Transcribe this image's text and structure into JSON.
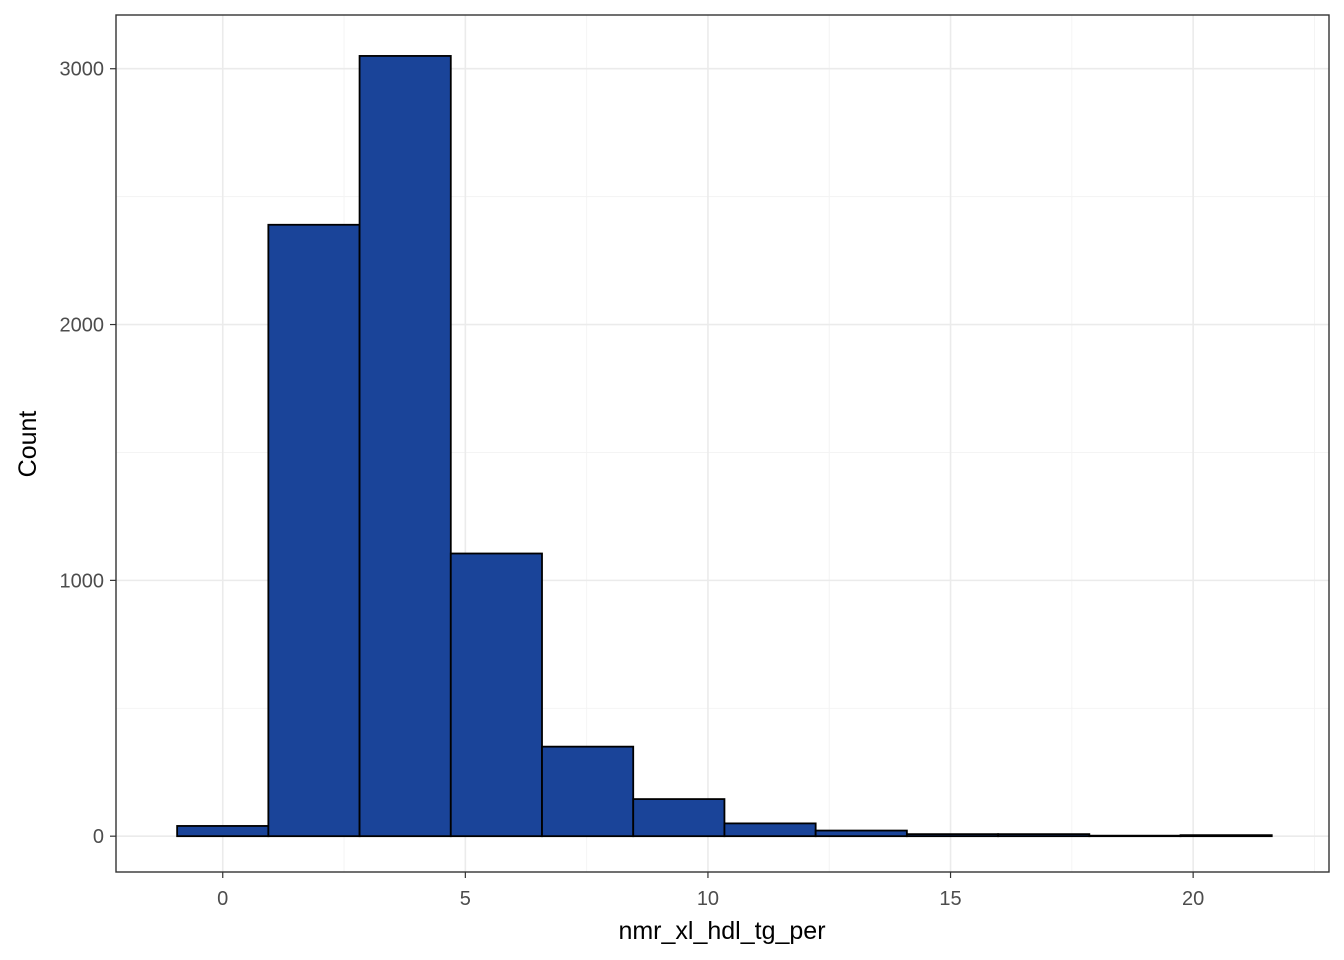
{
  "chart_data": {
    "type": "bar",
    "subtype": "histogram",
    "xlabel": "nmr_xl_hdl_tg_per",
    "ylabel": "Count",
    "xlim": [
      -2.2,
      22.8
    ],
    "ylim": [
      -140,
      3210
    ],
    "x_ticks": [
      0,
      5,
      10,
      15,
      20
    ],
    "x_tick_labels": [
      "0",
      "5",
      "10",
      "15",
      "20"
    ],
    "y_ticks": [
      0,
      1000,
      2000,
      3000
    ],
    "y_tick_labels": [
      "0",
      "1000",
      "2000",
      "3000"
    ],
    "grid": true,
    "bins": [
      {
        "x0": -0.94,
        "x1": 0.94,
        "count": 40
      },
      {
        "x0": 0.94,
        "x1": 2.82,
        "count": 2390
      },
      {
        "x0": 2.82,
        "x1": 4.7,
        "count": 3050
      },
      {
        "x0": 4.7,
        "x1": 6.58,
        "count": 1105
      },
      {
        "x0": 6.58,
        "x1": 8.46,
        "count": 350
      },
      {
        "x0": 8.46,
        "x1": 10.34,
        "count": 145
      },
      {
        "x0": 10.34,
        "x1": 12.22,
        "count": 50
      },
      {
        "x0": 12.22,
        "x1": 14.1,
        "count": 22
      },
      {
        "x0": 14.1,
        "x1": 15.98,
        "count": 8
      },
      {
        "x0": 15.98,
        "x1": 17.86,
        "count": 8
      },
      {
        "x0": 17.86,
        "x1": 19.74,
        "count": 2
      },
      {
        "x0": 19.74,
        "x1": 21.62,
        "count": 4
      }
    ],
    "bar_fill": "#1a4499",
    "bar_outline": "#000000"
  }
}
